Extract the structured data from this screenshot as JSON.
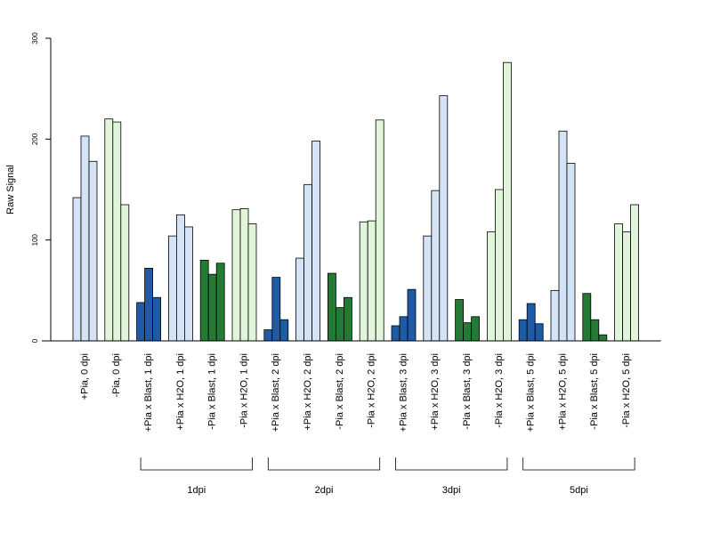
{
  "chart_data": {
    "type": "bar",
    "ylabel": "Raw Signal",
    "xlabel": "",
    "title": "",
    "ylim": [
      0,
      300
    ],
    "yticks": [
      0,
      100,
      200,
      300
    ],
    "colors": {
      "dark_blue": "#1f5aa6",
      "light_blue": "#d4e3f5",
      "dark_green": "#247a34",
      "light_green": "#e1f5da",
      "outline": "#000000"
    },
    "categories": [
      {
        "label": "+Pia, 0 dpi",
        "color": "light_blue",
        "values": [
          142,
          203,
          178
        ]
      },
      {
        "label": "-Pia, 0 dpi",
        "color": "light_green",
        "values": [
          220,
          217,
          135
        ]
      },
      {
        "label": "+Pia x Blast, 1 dpi",
        "color": "dark_blue",
        "values": [
          38,
          72,
          43
        ]
      },
      {
        "label": "+Pia x H2O, 1 dpi",
        "color": "light_blue",
        "values": [
          104,
          125,
          113
        ]
      },
      {
        "label": "-Pia x Blast, 1 dpi",
        "color": "dark_green",
        "values": [
          80,
          66,
          77
        ]
      },
      {
        "label": "-Pia x H2O, 1 dpi",
        "color": "light_green",
        "values": [
          130,
          131,
          116
        ]
      },
      {
        "label": "+Pia x Blast, 2 dpi",
        "color": "dark_blue",
        "values": [
          11,
          63,
          21
        ]
      },
      {
        "label": "+Pia x H2O, 2 dpi",
        "color": "light_blue",
        "values": [
          82,
          155,
          198
        ]
      },
      {
        "label": "-Pia x Blast, 2 dpi",
        "color": "dark_green",
        "values": [
          67,
          33,
          43
        ]
      },
      {
        "label": "-Pia x H2O, 2 dpi",
        "color": "light_green",
        "values": [
          118,
          119,
          219
        ]
      },
      {
        "label": "+Pia x Blast, 3 dpi",
        "color": "dark_blue",
        "values": [
          15,
          24,
          51
        ]
      },
      {
        "label": "+Pia x H2O, 3 dpi",
        "color": "light_blue",
        "values": [
          104,
          149,
          243
        ]
      },
      {
        "label": "-Pia x Blast, 3 dpi",
        "color": "dark_green",
        "values": [
          41,
          18,
          24
        ]
      },
      {
        "label": "-Pia x H2O, 3 dpi",
        "color": "light_green",
        "values": [
          108,
          150,
          276
        ]
      },
      {
        "label": "+Pia x Blast, 5 dpi",
        "color": "dark_blue",
        "values": [
          21,
          37,
          17
        ]
      },
      {
        "label": "+Pia x H2O, 5 dpi",
        "color": "light_blue",
        "values": [
          50,
          208,
          176
        ]
      },
      {
        "label": "-Pia x Blast, 5 dpi",
        "color": "dark_green",
        "values": [
          47,
          21,
          6
        ]
      },
      {
        "label": "-Pia x H2O, 5 dpi",
        "color": "light_green",
        "values": [
          116,
          108,
          135
        ]
      }
    ],
    "groups": [
      {
        "label": "1dpi",
        "from": 2,
        "to": 5
      },
      {
        "label": "2dpi",
        "from": 6,
        "to": 9
      },
      {
        "label": "3dpi",
        "from": 10,
        "to": 13
      },
      {
        "label": "5dpi",
        "from": 14,
        "to": 17
      }
    ],
    "grid": false,
    "legend": "none"
  }
}
